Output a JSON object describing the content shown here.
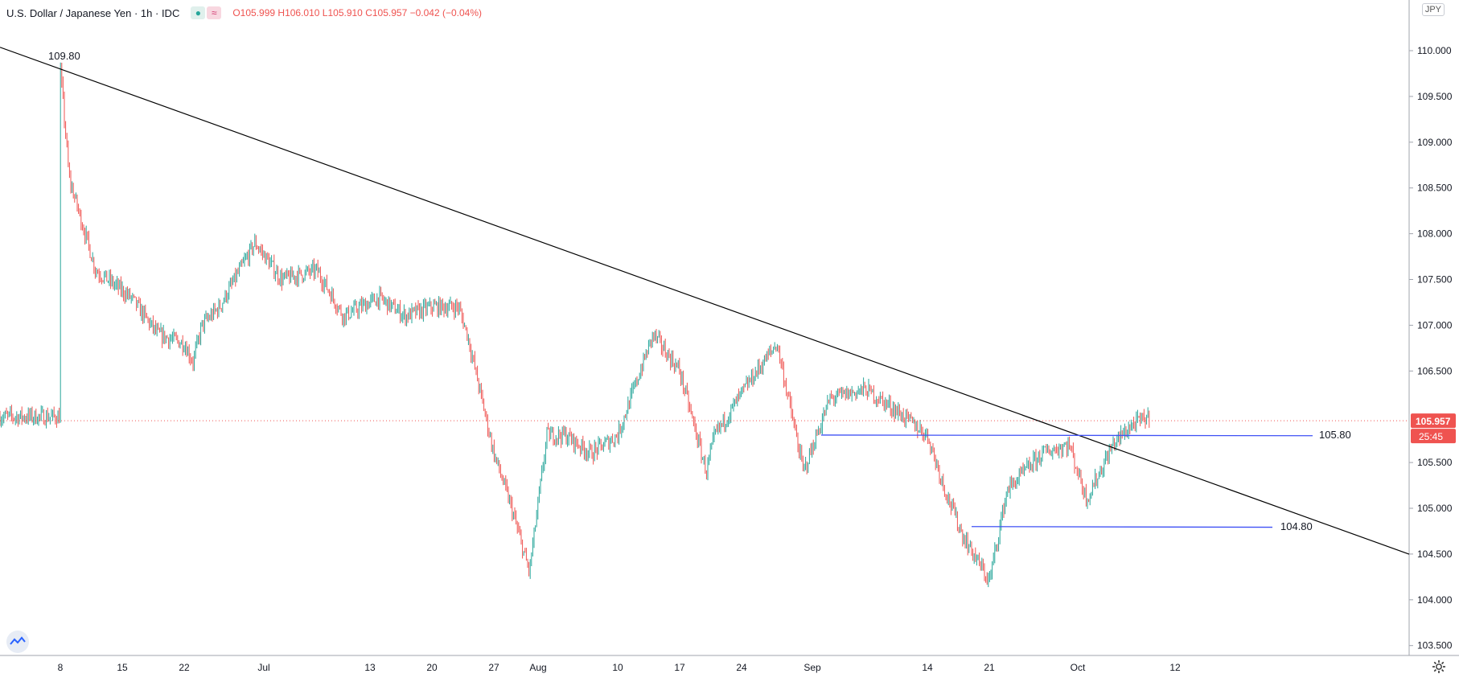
{
  "legend": {
    "title": "U.S. Dollar / Japanese Yen · 1h · IDC",
    "open": "O105.999",
    "high": "H106.010",
    "low": "L105.910",
    "close": "C105.957",
    "change": "−0.042 (−0.04%)"
  },
  "currency_badge": "JPY",
  "price_badge": {
    "price": "105.957",
    "countdown": "25:45"
  },
  "colors": {
    "up": "#26a69a",
    "down": "#ef5350",
    "trendline": "#000000",
    "levels": "#3f51f5",
    "price_badge": "#ef5350"
  },
  "icons": [
    "tradingview-logo-icon",
    "gear-icon"
  ],
  "chart_data": {
    "type": "candlestick",
    "y_ticks": [
      "110.000",
      "109.500",
      "109.000",
      "108.500",
      "108.000",
      "107.500",
      "107.000",
      "106.500",
      "105.500",
      "105.000",
      "104.500",
      "104.000",
      "103.500"
    ],
    "ylim": [
      103.3,
      110.55
    ],
    "x_ticks": [
      "8",
      "15",
      "22",
      "Jul",
      "13",
      "20",
      "27",
      "Aug",
      "10",
      "17",
      "24",
      "Sep",
      "14",
      "21",
      "Oct",
      "12"
    ],
    "current_price": 105.957,
    "series_path": [
      [
        "Jun 8",
        109.8
      ],
      [
        "Jun 9",
        108.6
      ],
      [
        "Jun 12",
        107.6
      ],
      [
        "Jun 16",
        107.3
      ],
      [
        "Jun 19",
        106.9
      ],
      [
        "Jun 22",
        106.8
      ],
      [
        "Jun 23",
        106.6
      ],
      [
        "Jun 24",
        107.0
      ],
      [
        "Jun 26",
        107.2
      ],
      [
        "Jun 30",
        107.9
      ],
      [
        "Jul 3",
        107.5
      ],
      [
        "Jul 7",
        107.6
      ],
      [
        "Jul 10",
        107.1
      ],
      [
        "Jul 14",
        107.3
      ],
      [
        "Jul 17",
        107.1
      ],
      [
        "Jul 20",
        107.2
      ],
      [
        "Jul 23",
        107.2
      ],
      [
        "Jul 24",
        106.9
      ],
      [
        "Jul 27",
        105.6
      ],
      [
        "Jul 29",
        105.0
      ],
      [
        "Jul 31",
        104.3
      ],
      [
        "Aug 2",
        105.8
      ],
      [
        "Aug 4",
        105.8
      ],
      [
        "Aug 7",
        105.6
      ],
      [
        "Aug 10",
        105.8
      ],
      [
        "Aug 14",
        106.9
      ],
      [
        "Aug 17",
        106.5
      ],
      [
        "Aug 20",
        105.4
      ],
      [
        "Aug 21",
        105.8
      ],
      [
        "Aug 25",
        106.4
      ],
      [
        "Aug 28",
        106.8
      ],
      [
        "Aug 31",
        105.4
      ],
      [
        "Sep 3",
        106.2
      ],
      [
        "Sep 7",
        106.3
      ],
      [
        "Sep 10",
        106.1
      ],
      [
        "Sep 14",
        105.8
      ],
      [
        "Sep 16",
        105.2
      ],
      [
        "Sep 18",
        104.7
      ],
      [
        "Sep 21",
        104.2
      ],
      [
        "Sep 23",
        105.2
      ],
      [
        "Sep 27",
        105.6
      ],
      [
        "Sep 30",
        105.7
      ],
      [
        "Oct 2",
        105.1
      ],
      [
        "Oct 5",
        105.7
      ],
      [
        "Oct 7",
        105.9
      ],
      [
        "Oct 9",
        106.0
      ]
    ],
    "annotations": [
      {
        "text": "109.80",
        "value": 109.8
      },
      {
        "text": "105.80",
        "value": 105.8
      },
      {
        "text": "104.80",
        "value": 104.8
      }
    ]
  }
}
